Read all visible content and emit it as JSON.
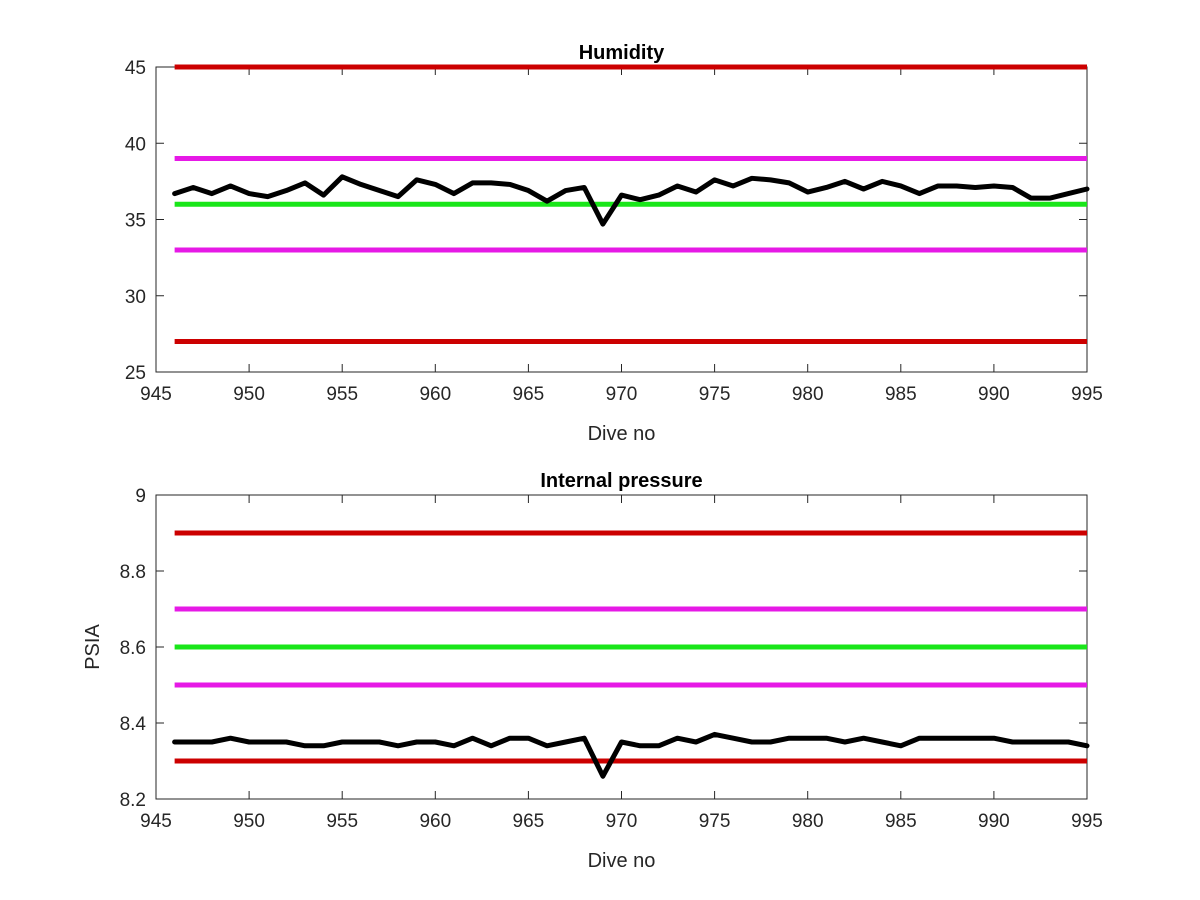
{
  "chart_data": [
    {
      "type": "line",
      "title": "Humidity",
      "xlabel": "Dive no",
      "ylabel": "",
      "xlim": [
        945,
        995
      ],
      "ylim": [
        25,
        45
      ],
      "xticks": [
        945,
        950,
        955,
        960,
        965,
        970,
        975,
        980,
        985,
        990,
        995
      ],
      "xtick_labels": [
        "945",
        "950",
        "955",
        "960",
        "965",
        "970",
        "975",
        "980",
        "985",
        "990",
        "995"
      ],
      "yticks": [
        25,
        30,
        35,
        40,
        45
      ],
      "ytick_labels": [
        "25",
        "30",
        "35",
        "40",
        "45"
      ],
      "grid": false,
      "reference_lines": [
        {
          "y": 45,
          "color": "#cc0000"
        },
        {
          "y": 39,
          "color": "#e619e6"
        },
        {
          "y": 36,
          "color": "#19e619"
        },
        {
          "y": 33,
          "color": "#e619e6"
        },
        {
          "y": 27,
          "color": "#cc0000"
        }
      ],
      "series": [
        {
          "color": "#000000",
          "x": [
            946,
            947,
            948,
            949,
            950,
            951,
            952,
            953,
            954,
            955,
            956,
            957,
            958,
            959,
            960,
            961,
            962,
            963,
            964,
            965,
            966,
            967,
            968,
            969,
            970,
            971,
            972,
            973,
            974,
            975,
            976,
            977,
            978,
            979,
            980,
            981,
            982,
            983,
            984,
            985,
            986,
            987,
            988,
            989,
            990,
            991,
            992,
            993,
            994,
            995
          ],
          "values": [
            36.7,
            37.1,
            36.7,
            37.2,
            36.7,
            36.5,
            36.9,
            37.4,
            36.6,
            37.8,
            37.3,
            36.9,
            36.5,
            37.6,
            37.3,
            36.7,
            37.4,
            37.4,
            37.3,
            36.9,
            36.2,
            36.9,
            37.1,
            34.7,
            36.6,
            36.3,
            36.6,
            37.2,
            36.8,
            37.6,
            37.2,
            37.7,
            37.6,
            37.4,
            36.8,
            37.1,
            37.5,
            37.0,
            37.5,
            37.2,
            36.7,
            37.2,
            37.2,
            37.1,
            37.2,
            37.1,
            36.4,
            36.4,
            36.7,
            37.0
          ]
        }
      ]
    },
    {
      "type": "line",
      "title": "Internal pressure",
      "xlabel": "Dive no",
      "ylabel": "PSIA",
      "xlim": [
        945,
        995
      ],
      "ylim": [
        8.2,
        9.0
      ],
      "xticks": [
        945,
        950,
        955,
        960,
        965,
        970,
        975,
        980,
        985,
        990,
        995
      ],
      "xtick_labels": [
        "945",
        "950",
        "955",
        "960",
        "965",
        "970",
        "975",
        "980",
        "985",
        "990",
        "995"
      ],
      "yticks": [
        8.2,
        8.4,
        8.6,
        8.8,
        9.0
      ],
      "ytick_labels": [
        "8.2",
        "8.4",
        "8.6",
        "8.8",
        "9"
      ],
      "grid": false,
      "reference_lines": [
        {
          "y": 8.9,
          "color": "#cc0000"
        },
        {
          "y": 8.7,
          "color": "#e619e6"
        },
        {
          "y": 8.6,
          "color": "#19e619"
        },
        {
          "y": 8.5,
          "color": "#e619e6"
        },
        {
          "y": 8.3,
          "color": "#cc0000"
        }
      ],
      "series": [
        {
          "color": "#000000",
          "x": [
            946,
            947,
            948,
            949,
            950,
            951,
            952,
            953,
            954,
            955,
            956,
            957,
            958,
            959,
            960,
            961,
            962,
            963,
            964,
            965,
            966,
            967,
            968,
            969,
            970,
            971,
            972,
            973,
            974,
            975,
            976,
            977,
            978,
            979,
            980,
            981,
            982,
            983,
            984,
            985,
            986,
            987,
            988,
            989,
            990,
            991,
            992,
            993,
            994,
            995
          ],
          "values": [
            8.35,
            8.35,
            8.35,
            8.36,
            8.35,
            8.35,
            8.35,
            8.34,
            8.34,
            8.35,
            8.35,
            8.35,
            8.34,
            8.35,
            8.35,
            8.34,
            8.36,
            8.34,
            8.36,
            8.36,
            8.34,
            8.35,
            8.36,
            8.26,
            8.35,
            8.34,
            8.34,
            8.36,
            8.35,
            8.37,
            8.36,
            8.35,
            8.35,
            8.36,
            8.36,
            8.36,
            8.35,
            8.36,
            8.35,
            8.34,
            8.36,
            8.36,
            8.36,
            8.36,
            8.36,
            8.35,
            8.35,
            8.35,
            8.35,
            8.34
          ]
        }
      ]
    }
  ]
}
